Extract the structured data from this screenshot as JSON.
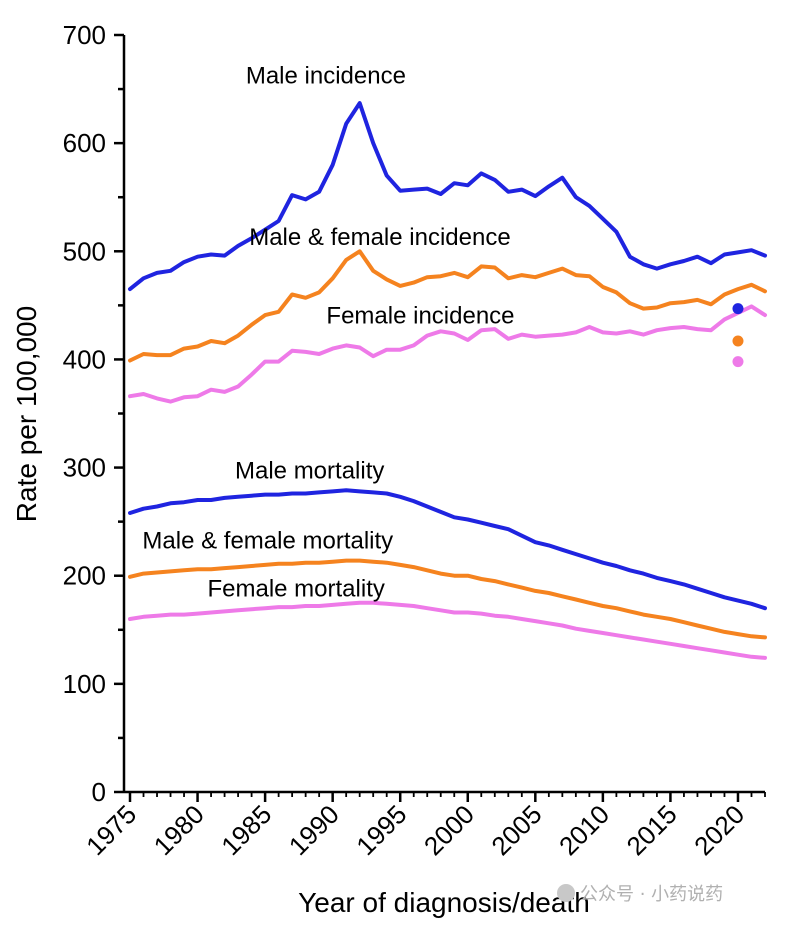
{
  "chart_data": {
    "type": "line",
    "title": "",
    "xlabel": "Year of diagnosis/death",
    "ylabel": "Rate per 100,000",
    "xlim": [
      1975,
      2022
    ],
    "ylim": [
      0,
      700
    ],
    "yticks": [
      0,
      100,
      200,
      300,
      400,
      500,
      600,
      700
    ],
    "xticks": [
      1975,
      1980,
      1985,
      1990,
      1995,
      2000,
      2005,
      2010,
      2015,
      2020
    ],
    "x": [
      1975,
      1976,
      1977,
      1978,
      1979,
      1980,
      1981,
      1982,
      1983,
      1984,
      1985,
      1986,
      1987,
      1988,
      1989,
      1990,
      1991,
      1992,
      1993,
      1994,
      1995,
      1996,
      1997,
      1998,
      1999,
      2000,
      2001,
      2002,
      2003,
      2004,
      2005,
      2006,
      2007,
      2008,
      2009,
      2010,
      2011,
      2012,
      2013,
      2014,
      2015,
      2016,
      2017,
      2018,
      2019,
      2020,
      2021,
      2022
    ],
    "series": [
      {
        "name": "Male incidence",
        "color": "#1f24e0",
        "values": [
          465,
          475,
          480,
          482,
          490,
          495,
          497,
          496,
          505,
          512,
          520,
          528,
          552,
          548,
          555,
          580,
          618,
          637,
          600,
          570,
          556,
          557,
          558,
          553,
          563,
          561,
          572,
          566,
          555,
          557,
          551,
          560,
          568,
          550,
          542,
          530,
          518,
          495,
          488,
          484,
          488,
          491,
          495,
          489,
          497,
          499,
          501,
          496
        ]
      },
      {
        "name": "Male & female incidence",
        "color": "#f5831f",
        "values": [
          399,
          405,
          404,
          404,
          410,
          412,
          417,
          415,
          422,
          432,
          441,
          444,
          460,
          457,
          462,
          475,
          492,
          500,
          482,
          474,
          468,
          471,
          476,
          477,
          480,
          476,
          486,
          485,
          475,
          478,
          476,
          480,
          484,
          478,
          477,
          467,
          462,
          452,
          447,
          448,
          452,
          453,
          455,
          451,
          460,
          465,
          469,
          463
        ]
      },
      {
        "name": "Female incidence",
        "color": "#ee7ae8",
        "values": [
          366,
          368,
          364,
          361,
          365,
          366,
          372,
          370,
          375,
          386,
          398,
          398,
          408,
          407,
          405,
          410,
          413,
          411,
          403,
          409,
          409,
          413,
          422,
          426,
          424,
          418,
          427,
          428,
          419,
          423,
          421,
          422,
          423,
          425,
          430,
          425,
          424,
          426,
          423,
          427,
          429,
          430,
          428,
          427,
          437,
          443,
          449,
          441
        ]
      },
      {
        "name": "Male mortality",
        "color": "#1f24e0",
        "values": [
          258,
          262,
          264,
          267,
          268,
          270,
          270,
          272,
          273,
          274,
          275,
          275,
          276,
          276,
          277,
          278,
          279,
          278,
          277,
          276,
          273,
          269,
          264,
          259,
          254,
          252,
          249,
          246,
          243,
          237,
          231,
          228,
          224,
          220,
          216,
          212,
          209,
          205,
          202,
          198,
          195,
          192,
          188,
          184,
          180,
          177,
          174,
          170
        ]
      },
      {
        "name": "Male & female mortality",
        "color": "#f5831f",
        "values": [
          199,
          202,
          203,
          204,
          205,
          206,
          206,
          207,
          208,
          209,
          210,
          211,
          211,
          212,
          212,
          213,
          214,
          214,
          213,
          212,
          210,
          208,
          205,
          202,
          200,
          200,
          197,
          195,
          192,
          189,
          186,
          184,
          181,
          178,
          175,
          172,
          170,
          167,
          164,
          162,
          160,
          157,
          154,
          151,
          148,
          146,
          144,
          143
        ]
      },
      {
        "name": "Female mortality",
        "color": "#ee7ae8",
        "values": [
          160,
          162,
          163,
          164,
          164,
          165,
          166,
          167,
          168,
          169,
          170,
          171,
          171,
          172,
          172,
          173,
          174,
          175,
          175,
          174,
          173,
          172,
          170,
          168,
          166,
          166,
          165,
          163,
          162,
          160,
          158,
          156,
          154,
          151,
          149,
          147,
          145,
          143,
          141,
          139,
          137,
          135,
          133,
          131,
          129,
          127,
          125,
          124
        ]
      }
    ],
    "extra_points": [
      {
        "series": "Male incidence",
        "x": 2020,
        "y": 447,
        "color": "#1f24e0"
      },
      {
        "series": "Male & female incidence",
        "x": 2020,
        "y": 417,
        "color": "#f5831f"
      },
      {
        "series": "Female incidence",
        "x": 2020,
        "y": 398,
        "color": "#ee7ae8"
      }
    ],
    "annotations": [
      {
        "text": "Male incidence",
        "x": 1989.5,
        "y": 655
      },
      {
        "text": "Male & female incidence",
        "x": 1993.5,
        "y": 506
      },
      {
        "text": "Female incidence",
        "x": 1996.5,
        "y": 433
      },
      {
        "text": "Male mortality",
        "x": 1988.3,
        "y": 290
      },
      {
        "text": "Male & female mortality",
        "x": 1985.2,
        "y": 225
      },
      {
        "text": "Female mortality",
        "x": 1987.3,
        "y": 181
      }
    ]
  },
  "watermark": "公众号 · 小药说药"
}
